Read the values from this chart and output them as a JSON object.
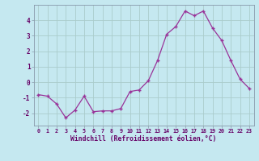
{
  "x": [
    0,
    1,
    2,
    3,
    4,
    5,
    6,
    7,
    8,
    9,
    10,
    11,
    12,
    13,
    14,
    15,
    16,
    17,
    18,
    19,
    20,
    21,
    22,
    23
  ],
  "y": [
    -0.8,
    -0.9,
    -1.4,
    -2.3,
    -1.8,
    -0.9,
    -1.9,
    -1.85,
    -1.85,
    -1.7,
    -0.6,
    -0.5,
    0.1,
    1.4,
    3.1,
    3.6,
    4.6,
    4.3,
    4.6,
    3.5,
    2.7,
    1.4,
    0.2,
    -0.4
  ],
  "line_color": "#993399",
  "marker_color": "#993399",
  "bg_color": "#c5e8f0",
  "grid_color": "#aacccc",
  "xlabel": "Windchill (Refroidissement éolien,°C)",
  "xlabel_color": "#660066",
  "tick_color": "#660066",
  "ylim": [
    -2.8,
    5.0
  ],
  "xlim": [
    -0.5,
    23.5
  ],
  "yticks": [
    -2,
    -1,
    0,
    1,
    2,
    3,
    4
  ],
  "xticks": [
    0,
    1,
    2,
    3,
    4,
    5,
    6,
    7,
    8,
    9,
    10,
    11,
    12,
    13,
    14,
    15,
    16,
    17,
    18,
    19,
    20,
    21,
    22,
    23
  ],
  "spine_color": "#8899aa",
  "title_bg": "#7700aa"
}
